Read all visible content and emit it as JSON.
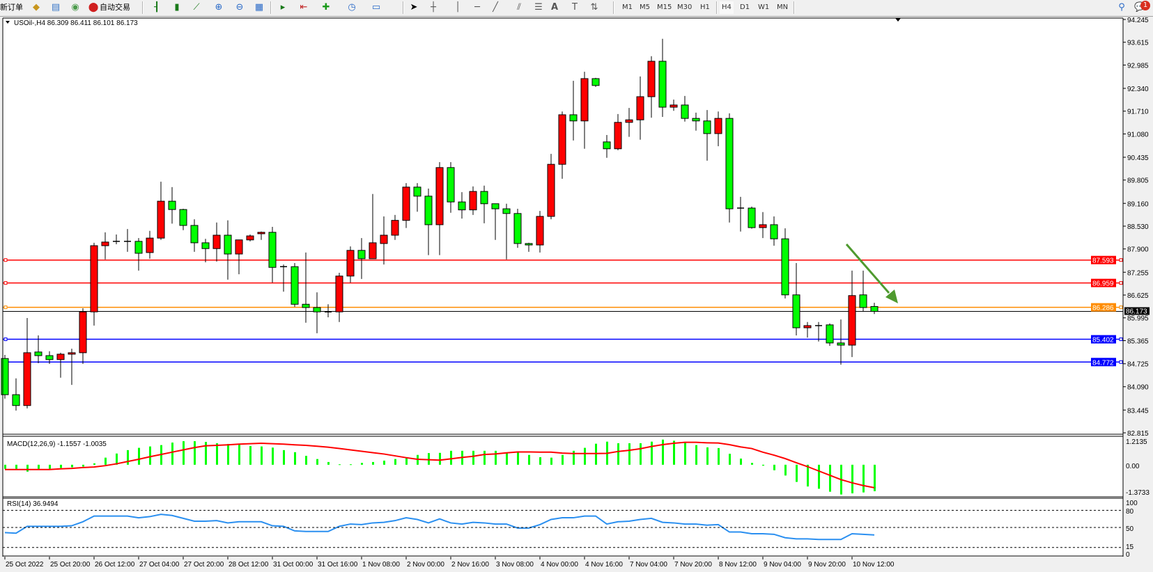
{
  "toolbar": {
    "new_order": "新订单",
    "auto_trading": "自动交易",
    "timeframes": [
      "M1",
      "M5",
      "M15",
      "M30",
      "H1",
      "H4",
      "D1",
      "W1",
      "MN"
    ],
    "active_timeframe": "H4",
    "notification_count": "1",
    "icons": [
      "gold-bars-icon",
      "market-watch-icon",
      "signals-icon",
      "auto-trading-icon",
      "bar-chart-icon",
      "candlestick-icon",
      "line-chart-icon",
      "zoom-in-icon",
      "zoom-out-icon",
      "tile-windows-icon",
      "auto-scroll-icon",
      "chart-shift-icon",
      "new-chart-icon",
      "periods-clock-icon",
      "templates-icon",
      "cursor-icon",
      "crosshair-icon",
      "vertical-line-icon",
      "horizontal-line-icon",
      "trendline-icon",
      "fibo-channel-icon",
      "fibo-retracement-icon",
      "text-icon",
      "text-label-icon",
      "arrows-icon",
      "search-icon",
      "chat-icon"
    ]
  },
  "chart": {
    "symbol_line": "USOil-,H4  86.309 86.411 86.101 86.173",
    "macd_label": "MACD(12,26,9) -1.1557 -1.0035",
    "rsi_label": "RSI(14) 36.9494",
    "price_ticks": [
      "94.245",
      "93.615",
      "92.985",
      "92.340",
      "91.710",
      "91.080",
      "90.435",
      "89.805",
      "89.160",
      "88.530",
      "87.900",
      "87.255",
      "86.625",
      "85.995",
      "85.365",
      "84.725",
      "84.090",
      "83.445",
      "82.815"
    ],
    "macd_ticks": [
      "1.2135",
      "0.00",
      "-1.3733"
    ],
    "rsi_ticks": [
      "100",
      "80",
      "50",
      "15",
      "0"
    ],
    "time_labels": [
      "25 Oct 2022",
      "25 Oct 20:00",
      "26 Oct 12:00",
      "27 Oct 04:00",
      "27 Oct 20:00",
      "28 Oct 12:00",
      "31 Oct 00:00",
      "31 Oct 16:00",
      "1 Nov 08:00",
      "2 Nov 00:00",
      "2 Nov 16:00",
      "3 Nov 08:00",
      "4 Nov 00:00",
      "4 Nov 16:00",
      "7 Nov 04:00",
      "7 Nov 20:00",
      "8 Nov 12:00",
      "9 Nov 04:00",
      "9 Nov 20:00",
      "10 Nov 12:00"
    ],
    "horizontal_lines": [
      {
        "price": "87.593",
        "color": "#ff0000"
      },
      {
        "price": "86.959",
        "color": "#ff0000"
      },
      {
        "price": "86.286",
        "color": "#ff8c00"
      },
      {
        "price": "85.402",
        "color": "#0000ff"
      },
      {
        "price": "84.772",
        "color": "#0000ff"
      }
    ],
    "current_price": "86.173",
    "arrow_color": "#4f9a2f",
    "colors": {
      "bull": "#ff0000",
      "bear": "#00ff00",
      "macd_hist": "#00ff00",
      "macd_signal": "#ff0000",
      "rsi": "#2a8ff0"
    }
  },
  "chart_data": {
    "type": "candlestick",
    "symbol": "USOil-",
    "timeframe": "H4",
    "ylim": [
      82.815,
      94.245
    ],
    "ohlc": [
      [
        84.87,
        84.97,
        83.76,
        83.87
      ],
      [
        83.87,
        84.32,
        83.43,
        83.57
      ],
      [
        83.57,
        85.99,
        83.49,
        85.03
      ],
      [
        85.05,
        85.51,
        84.74,
        84.95
      ],
      [
        84.95,
        85.07,
        84.72,
        84.84
      ],
      [
        84.84,
        85.03,
        84.34,
        84.99
      ],
      [
        84.99,
        85.14,
        84.14,
        85.03
      ],
      [
        85.03,
        86.26,
        84.72,
        86.16
      ],
      [
        86.16,
        88.07,
        85.78,
        87.99
      ],
      [
        87.99,
        88.36,
        87.61,
        88.09
      ],
      [
        88.09,
        88.3,
        88.03,
        88.11
      ],
      [
        88.11,
        88.45,
        87.82,
        88.11
      ],
      [
        88.11,
        88.2,
        87.3,
        87.78
      ],
      [
        87.8,
        88.4,
        87.63,
        88.2
      ],
      [
        88.2,
        89.76,
        88.15,
        89.22
      ],
      [
        89.22,
        89.61,
        88.6,
        88.99
      ],
      [
        88.99,
        89.01,
        88.42,
        88.55
      ],
      [
        88.55,
        88.72,
        87.82,
        88.07
      ],
      [
        88.07,
        88.18,
        87.53,
        87.91
      ],
      [
        87.91,
        88.63,
        87.55,
        88.28
      ],
      [
        88.28,
        88.69,
        87.05,
        87.76
      ],
      [
        87.76,
        88.15,
        87.2,
        88.15
      ],
      [
        88.15,
        88.3,
        88.11,
        88.26
      ],
      [
        88.32,
        88.38,
        88.15,
        88.36
      ],
      [
        88.36,
        88.51,
        86.97,
        87.39
      ],
      [
        87.41,
        87.47,
        86.72,
        87.41
      ],
      [
        87.41,
        87.51,
        86.3,
        86.37
      ],
      [
        86.37,
        87.8,
        85.86,
        86.28
      ],
      [
        86.28,
        86.7,
        85.57,
        86.16
      ],
      [
        86.16,
        86.37,
        86.01,
        86.16
      ],
      [
        86.16,
        87.24,
        85.88,
        87.15
      ],
      [
        87.15,
        87.97,
        86.97,
        87.86
      ],
      [
        87.86,
        88.2,
        87.07,
        87.63
      ],
      [
        87.63,
        89.42,
        87.63,
        88.07
      ],
      [
        88.05,
        88.8,
        87.47,
        88.28
      ],
      [
        88.28,
        88.84,
        88.15,
        88.69
      ],
      [
        88.69,
        89.72,
        88.48,
        89.61
      ],
      [
        89.61,
        89.72,
        88.93,
        89.36
      ],
      [
        89.36,
        89.57,
        87.73,
        88.57
      ],
      [
        88.57,
        90.3,
        87.73,
        90.15
      ],
      [
        90.15,
        90.3,
        88.9,
        89.2
      ],
      [
        89.2,
        89.47,
        88.74,
        88.98
      ],
      [
        88.98,
        89.63,
        88.84,
        89.49
      ],
      [
        89.49,
        89.65,
        88.61,
        89.15
      ],
      [
        89.15,
        89.15,
        88.15,
        89.01
      ],
      [
        89.01,
        89.15,
        87.61,
        88.88
      ],
      [
        88.88,
        89.01,
        87.93,
        88.05
      ],
      [
        88.05,
        88.07,
        87.82,
        88.01
      ],
      [
        88.01,
        88.95,
        87.8,
        88.8
      ],
      [
        88.8,
        90.53,
        88.72,
        90.24
      ],
      [
        90.24,
        91.7,
        89.84,
        91.61
      ],
      [
        91.61,
        92.55,
        90.9,
        91.44
      ],
      [
        91.44,
        92.8,
        90.67,
        92.61
      ],
      [
        92.61,
        92.63,
        92.38,
        92.42
      ],
      [
        90.86,
        91.05,
        90.42,
        90.67
      ],
      [
        90.67,
        91.63,
        90.63,
        91.4
      ],
      [
        91.4,
        91.8,
        91.0,
        91.47
      ],
      [
        91.47,
        92.67,
        90.92,
        92.11
      ],
      [
        92.11,
        93.23,
        91.53,
        93.09
      ],
      [
        93.09,
        93.71,
        91.55,
        91.82
      ],
      [
        91.82,
        92.03,
        91.72,
        91.88
      ],
      [
        91.88,
        92.13,
        91.42,
        91.51
      ],
      [
        91.51,
        91.67,
        91.17,
        91.44
      ],
      [
        91.44,
        91.74,
        90.34,
        91.09
      ],
      [
        91.09,
        91.7,
        90.74,
        91.51
      ],
      [
        91.51,
        91.65,
        88.63,
        89.01
      ],
      [
        89.01,
        89.34,
        88.38,
        89.03
      ],
      [
        89.03,
        89.07,
        88.46,
        88.49
      ],
      [
        88.49,
        88.92,
        88.2,
        88.57
      ],
      [
        88.57,
        88.8,
        87.99,
        88.18
      ],
      [
        88.18,
        88.47,
        86.53,
        86.63
      ],
      [
        86.63,
        87.51,
        85.51,
        85.72
      ],
      [
        85.72,
        85.88,
        85.45,
        85.78
      ],
      [
        85.78,
        85.88,
        85.34,
        85.78
      ],
      [
        85.8,
        85.84,
        85.22,
        85.3
      ],
      [
        85.3,
        85.95,
        84.7,
        85.24
      ],
      [
        85.24,
        87.3,
        84.91,
        86.61
      ],
      [
        86.63,
        87.3,
        86.18,
        86.28
      ],
      [
        86.309,
        86.411,
        86.101,
        86.173
      ]
    ],
    "macd": {
      "ylim": [
        -1.3733,
        1.2135
      ],
      "histogram": [
        -0.18,
        -0.18,
        -0.3,
        -0.18,
        -0.18,
        -0.14,
        -0.11,
        -0.08,
        0.06,
        0.31,
        0.49,
        0.64,
        0.74,
        0.8,
        0.86,
        0.97,
        1.03,
        1.03,
        1.0,
        0.94,
        0.91,
        0.88,
        0.82,
        0.8,
        0.75,
        0.64,
        0.55,
        0.39,
        0.25,
        0.12,
        0.02,
        0.02,
        0.08,
        0.12,
        0.18,
        0.25,
        0.31,
        0.43,
        0.51,
        0.52,
        0.61,
        0.61,
        0.61,
        0.61,
        0.61,
        0.53,
        0.53,
        0.43,
        0.33,
        0.31,
        0.43,
        0.61,
        0.74,
        0.92,
        1.01,
        0.94,
        0.94,
        0.94,
        1.01,
        1.1,
        1.05,
        0.97,
        0.86,
        0.76,
        0.73,
        0.48,
        0.27,
        0.08,
        -0.04,
        -0.24,
        -0.47,
        -0.75,
        -0.95,
        -1.05,
        -1.18,
        -1.3,
        -1.25,
        -1.21,
        -1.1557
      ],
      "signal": [
        -0.21,
        -0.21,
        -0.21,
        -0.21,
        -0.21,
        -0.18,
        -0.16,
        -0.12,
        -0.1,
        -0.04,
        0.04,
        0.14,
        0.24,
        0.35,
        0.45,
        0.55,
        0.65,
        0.75,
        0.83,
        0.85,
        0.87,
        0.9,
        0.92,
        0.94,
        0.92,
        0.9,
        0.87,
        0.85,
        0.81,
        0.77,
        0.71,
        0.65,
        0.59,
        0.53,
        0.47,
        0.39,
        0.31,
        0.24,
        0.22,
        0.2,
        0.26,
        0.32,
        0.37,
        0.45,
        0.47,
        0.52,
        0.56,
        0.56,
        0.55,
        0.55,
        0.51,
        0.49,
        0.49,
        0.49,
        0.5,
        0.58,
        0.63,
        0.7,
        0.8,
        0.88,
        0.94,
        0.98,
        0.98,
        0.96,
        0.95,
        0.88,
        0.78,
        0.71,
        0.55,
        0.42,
        0.27,
        0.09,
        -0.08,
        -0.27,
        -0.46,
        -0.65,
        -0.79,
        -0.91,
        -1.0035
      ]
    },
    "rsi": {
      "ylim": [
        0,
        100
      ],
      "levels": [
        80,
        50,
        15
      ],
      "values": [
        41,
        40,
        52,
        52,
        52,
        52,
        53,
        60,
        70,
        70,
        70,
        70,
        67,
        69,
        73,
        71,
        66,
        61,
        61,
        62,
        58,
        60,
        60,
        60,
        53,
        52,
        44,
        43,
        43,
        43,
        52,
        56,
        55,
        58,
        59,
        62,
        67,
        64,
        58,
        65,
        58,
        56,
        59,
        58,
        56,
        56,
        49,
        49,
        55,
        64,
        67,
        67,
        70,
        70,
        56,
        60,
        61,
        64,
        66,
        59,
        58,
        56,
        56,
        54,
        55,
        42,
        42,
        39,
        39,
        38,
        32,
        30,
        30,
        29,
        29,
        29,
        39,
        38,
        36.9494
      ]
    }
  }
}
